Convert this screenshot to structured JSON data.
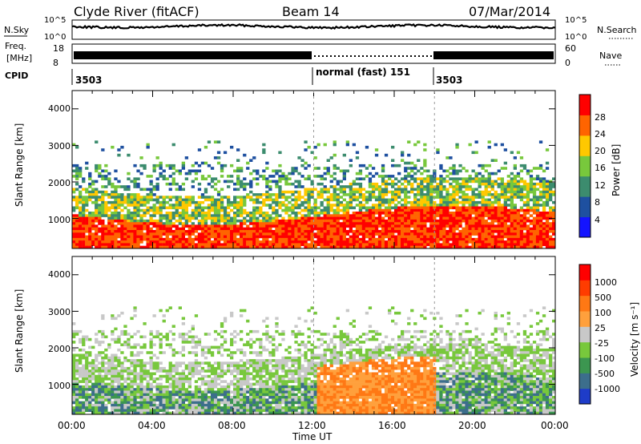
{
  "header": {
    "station": "Clyde River (fitACF)",
    "beam": "Beam 14",
    "date": "07/Mar/2014"
  },
  "aux_labels": {
    "nsky": "N.Sky",
    "nsearch": "N.Search",
    "freq_line1": "Freq.",
    "freq_line2": "[MHz]",
    "nave": "Nave",
    "cpid": "CPID",
    "noise_ticks": [
      "10^5",
      "10^0"
    ],
    "freq_ticks": [
      "18",
      "8"
    ],
    "nave_ticks": [
      "60",
      "0"
    ]
  },
  "cpid_segments": [
    {
      "label": "3503",
      "start_hour": 0,
      "end_hour": 12
    },
    {
      "label": "normal (fast) 151",
      "start_hour": 12,
      "end_hour": 18
    },
    {
      "label": "3503",
      "start_hour": 18,
      "end_hour": 24
    }
  ],
  "chart_data": [
    {
      "type": "heatmap",
      "title": "",
      "xlabel": "Time UT",
      "ylabel": "Slant Range [km]",
      "xlim": [
        0,
        24
      ],
      "ylim": [
        180,
        4500
      ],
      "x_ticks": [
        "00:00",
        "04:00",
        "08:00",
        "12:00",
        "16:00",
        "20:00",
        "00:00"
      ],
      "y_ticks": [
        "1000",
        "2000",
        "3000",
        "4000"
      ],
      "colorbar": {
        "label": "Power [dB]",
        "ticks": [
          "28",
          "24",
          "20",
          "16",
          "12",
          "8",
          "4"
        ],
        "range": [
          0,
          30
        ],
        "colors": [
          "#1414ff",
          "#1e50a0",
          "#3c8c6e",
          "#78c83c",
          "#ffc800",
          "#ff6400",
          "#ff0000"
        ]
      }
    },
    {
      "type": "heatmap",
      "title": "",
      "xlabel": "Time UT",
      "ylabel": "Slant Range [km]",
      "xlim": [
        0,
        24
      ],
      "ylim": [
        180,
        4500
      ],
      "x_ticks": [
        "00:00",
        "04:00",
        "08:00",
        "12:00",
        "16:00",
        "20:00",
        "00:00"
      ],
      "y_ticks": [
        "1000",
        "2000",
        "3000",
        "4000"
      ],
      "colorbar": {
        "label": "Velocity [m s⁻¹]",
        "ticks": [
          "1000",
          "500",
          "100",
          "25",
          "-25",
          "-100",
          "-500",
          "-1000"
        ],
        "colors": [
          "#1e3cc8",
          "#3c6e8c",
          "#3c9650",
          "#78c83c",
          "#c8c8c8",
          "#ffa03c",
          "#ff7814",
          "#ff3c00",
          "#ff0000"
        ]
      }
    }
  ]
}
